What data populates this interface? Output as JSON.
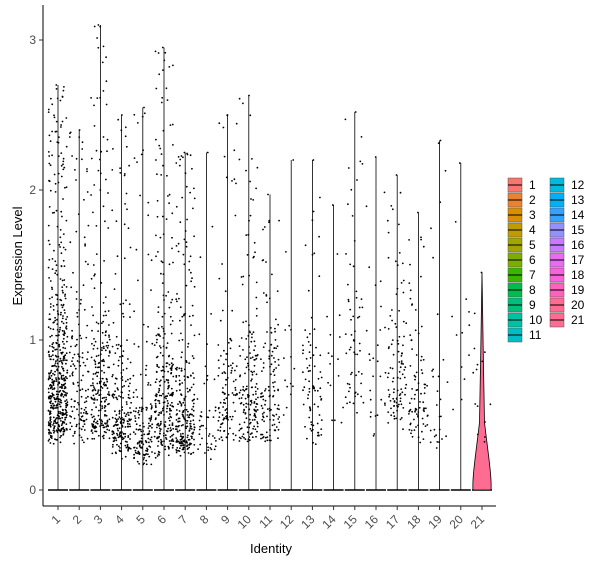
{
  "chart_data": {
    "type": "violin",
    "title": "",
    "xlabel": "Identity",
    "ylabel": "Expression Level",
    "ylim": [
      -0.13,
      3.12
    ],
    "yticks": [
      0,
      1,
      2,
      3
    ],
    "categories": [
      "1",
      "2",
      "3",
      "4",
      "5",
      "6",
      "7",
      "8",
      "9",
      "10",
      "11",
      "12",
      "13",
      "14",
      "15",
      "16",
      "17",
      "18",
      "19",
      "20",
      "21"
    ],
    "colors": [
      "#F8766D",
      "#EA8331",
      "#D89000",
      "#C09B00",
      "#A3A500",
      "#7CAE00",
      "#39B600",
      "#00BB4E",
      "#00BF7D",
      "#00C1A3",
      "#00BFC4",
      "#00BAE0",
      "#00B0F6",
      "#35A2FF",
      "#9590FF",
      "#C77CFF",
      "#E76BF3",
      "#FA62DB",
      "#FF62BC",
      "#FF6C91",
      "#FF6C91"
    ],
    "series": [
      {
        "category": "1",
        "max": 2.7,
        "bulk": [
          0.3,
          1.2
        ],
        "nonzero_dots": 520
      },
      {
        "category": "2",
        "max": 2.4,
        "bulk": [
          0.3,
          1.1
        ],
        "nonzero_dots": 140
      },
      {
        "category": "3",
        "max": 3.1,
        "bulk": [
          0.3,
          1.0
        ],
        "nonzero_dots": 240
      },
      {
        "category": "4",
        "max": 2.5,
        "bulk": [
          0.2,
          0.8
        ],
        "nonzero_dots": 210
      },
      {
        "category": "5",
        "max": 2.55,
        "bulk": [
          0.15,
          0.6
        ],
        "nonzero_dots": 150
      },
      {
        "category": "6",
        "max": 2.95,
        "bulk": [
          0.2,
          1.0
        ],
        "nonzero_dots": 280
      },
      {
        "category": "7",
        "max": 2.25,
        "bulk": [
          0.2,
          0.8
        ],
        "nonzero_dots": 260
      },
      {
        "category": "8",
        "max": 2.25,
        "bulk": [
          0.2,
          0.6
        ],
        "nonzero_dots": 45
      },
      {
        "category": "9",
        "max": 2.5,
        "bulk": [
          0.3,
          0.9
        ],
        "nonzero_dots": 110
      },
      {
        "category": "10",
        "max": 2.63,
        "bulk": [
          0.3,
          0.9
        ],
        "nonzero_dots": 170
      },
      {
        "category": "11",
        "max": 1.97,
        "bulk": [
          0.3,
          0.9
        ],
        "nonzero_dots": 120
      },
      {
        "category": "12",
        "max": 2.2,
        "bulk": [
          0.4,
          1.2
        ],
        "nonzero_dots": 14
      },
      {
        "category": "13",
        "max": 2.2,
        "bulk": [
          0.3,
          0.9
        ],
        "nonzero_dots": 80
      },
      {
        "category": "14",
        "max": 1.9,
        "bulk": [
          0.4,
          1.2
        ],
        "nonzero_dots": 16
      },
      {
        "category": "15",
        "max": 2.52,
        "bulk": [
          0.5,
          1.4
        ],
        "nonzero_dots": 60
      },
      {
        "category": "16",
        "max": 2.22,
        "bulk": [
          0.3,
          1.0
        ],
        "nonzero_dots": 28
      },
      {
        "category": "17",
        "max": 2.1,
        "bulk": [
          0.4,
          1.2
        ],
        "nonzero_dots": 100
      },
      {
        "category": "18",
        "max": 1.85,
        "bulk": [
          0.3,
          0.9
        ],
        "nonzero_dots": 85
      },
      {
        "category": "19",
        "max": 2.33,
        "bulk": [
          0.2,
          0.8
        ],
        "nonzero_dots": 28
      },
      {
        "category": "20",
        "max": 2.18,
        "bulk": [
          0.5,
          1.3
        ],
        "nonzero_dots": 12
      },
      {
        "category": "21",
        "max": 1.45,
        "bulk": [
          0.3,
          0.8
        ],
        "nonzero_dots": 14,
        "filled_violin": true
      }
    ],
    "legend": {
      "position": "right",
      "columns": 2,
      "labels": [
        "1",
        "2",
        "3",
        "4",
        "5",
        "6",
        "7",
        "8",
        "9",
        "10",
        "11",
        "12",
        "13",
        "14",
        "15",
        "16",
        "17",
        "18",
        "19",
        "20",
        "21"
      ]
    }
  }
}
